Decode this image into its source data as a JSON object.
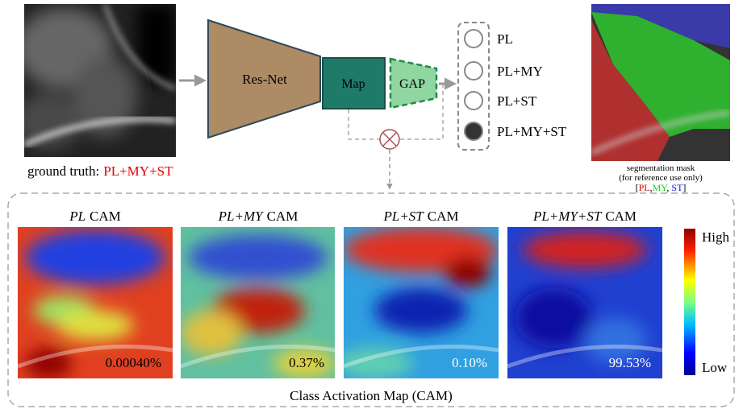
{
  "input": {
    "caption_prefix": "ground truth:",
    "caption_value": "PL+MY+ST"
  },
  "network": {
    "backbone": "Res-Net",
    "map": "Map",
    "pool": "GAP"
  },
  "outputs": [
    {
      "label": "PL",
      "selected": false
    },
    {
      "label": "PL+MY",
      "selected": false
    },
    {
      "label": "PL+ST",
      "selected": false
    },
    {
      "label": "PL+MY+ST",
      "selected": true
    }
  ],
  "segmentation": {
    "caption_lines": [
      "segmentation mask",
      "(for reference use only)"
    ],
    "legend": [
      {
        "text": "[",
        "color": "#000000"
      },
      {
        "text": "PL",
        "color": "#e00000"
      },
      {
        "text": ",",
        "color": "#000000"
      },
      {
        "text": "MY",
        "color": "#1fd21f"
      },
      {
        "text": ", ",
        "color": "#000000"
      },
      {
        "text": "ST",
        "color": "#1010e0"
      },
      {
        "text": "]",
        "color": "#000000"
      }
    ]
  },
  "cams": [
    {
      "class": "PL",
      "suffix": "CAM",
      "score": "0.00040%"
    },
    {
      "class": "PL+MY",
      "suffix": "CAM",
      "score": "0.37%"
    },
    {
      "class": "PL+ST",
      "suffix": "CAM",
      "score": "0.10%"
    },
    {
      "class": "PL+MY+ST",
      "suffix": "CAM",
      "score": "99.53%"
    }
  ],
  "colorbar": {
    "high": "High",
    "low": "Low"
  },
  "section_title": "Class Activation Map (CAM)"
}
